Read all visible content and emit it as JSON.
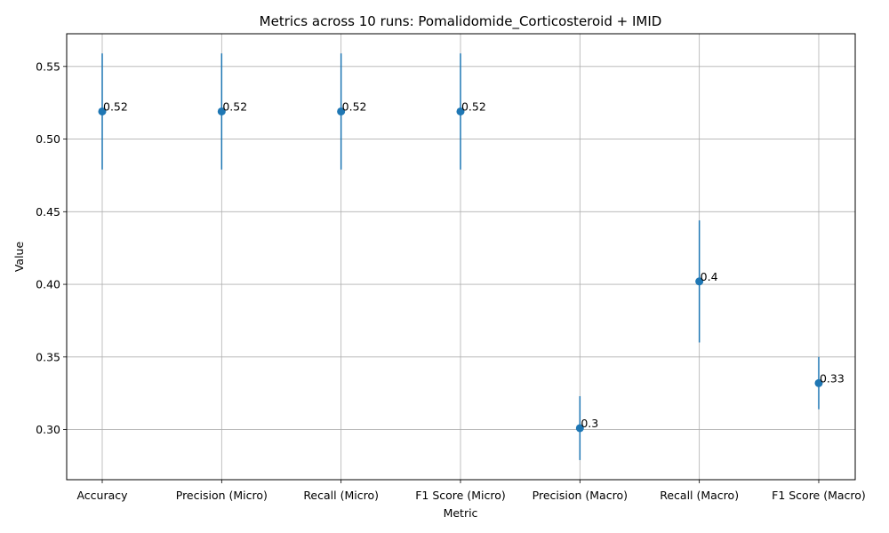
{
  "chart_data": {
    "type": "scatter",
    "title": "Metrics across 10 runs: Pomalidomide_Corticosteroid + IMID",
    "xlabel": "Metric",
    "ylabel": "Value",
    "categories": [
      "Accuracy",
      "Precision (Micro)",
      "Recall (Micro)",
      "F1 Score (Micro)",
      "Precision (Macro)",
      "Recall (Macro)",
      "F1 Score (Macro)"
    ],
    "values": [
      0.519,
      0.519,
      0.519,
      0.519,
      0.301,
      0.402,
      0.332
    ],
    "error_low": [
      0.479,
      0.479,
      0.479,
      0.479,
      0.279,
      0.36,
      0.314
    ],
    "error_high": [
      0.559,
      0.559,
      0.559,
      0.559,
      0.323,
      0.444,
      0.35
    ],
    "data_labels": [
      "0.52",
      "0.52",
      "0.52",
      "0.52",
      "0.3",
      "0.4",
      "0.33"
    ],
    "ylim": [
      0.2655,
      0.5725
    ],
    "yticks": [
      0.3,
      0.35,
      0.4,
      0.45,
      0.5,
      0.55
    ],
    "ytick_labels": [
      "0.30",
      "0.35",
      "0.40",
      "0.45",
      "0.50",
      "0.55"
    ],
    "grid": true,
    "color": "#1f77b4"
  }
}
